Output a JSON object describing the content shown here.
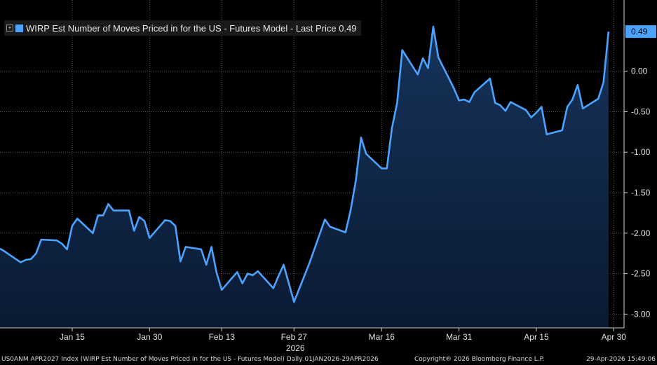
{
  "legend": {
    "expand_glyph": "+",
    "label": "WIRP Est Number of Moves Priced in for the US - Futures Model - Last Price 0.49",
    "color": "#4aa3ff"
  },
  "last_price_label": "0.49",
  "footer": {
    "source": "US0ANM APR2027 Index (WIRP Est Number of Moves Priced in for the US - Futures Model) Daily 01JAN2026-29APR2026",
    "copyright": "Copyright® 2026 Bloomberg Finance L.P.",
    "timestamp": "29-Apr-2026 15:49:06"
  },
  "colors": {
    "background": "#000000",
    "line": "#4aa3ff",
    "area_top": "#16335a",
    "area_bottom": "#0a1a33",
    "grid": "#5a5a5a",
    "label_box": "#4aa3ff"
  },
  "chart_data": {
    "type": "area",
    "title": "WIRP Est Number of Moves Priced in for the US - Futures Model",
    "x_ticks": [
      {
        "date": "2026-01-15",
        "label": "Jan 15"
      },
      {
        "date": "2026-01-30",
        "label": "Jan 30"
      },
      {
        "date": "2026-02-13",
        "label": "Feb 13"
      },
      {
        "date": "2026-02-27",
        "label": "Feb 27"
      },
      {
        "date": "2026-03-16",
        "label": "Mar 16"
      },
      {
        "date": "2026-03-31",
        "label": "Mar 31"
      },
      {
        "date": "2026-04-15",
        "label": "Apr 15"
      },
      {
        "date": "2026-04-30",
        "label": "Apr 30"
      }
    ],
    "year_label": "2026",
    "y_ticks": [
      0.0,
      -0.5,
      -1.0,
      -1.5,
      -2.0,
      -2.5,
      -3.0
    ],
    "y_tick_labels": [
      "0.00",
      "-0.50",
      "-1.00",
      "-1.50",
      "-2.00",
      "-2.50",
      "-3.00"
    ],
    "ylim": [
      -3.17,
      0.88
    ],
    "xlim": [
      "2026-01-01",
      "2026-05-02"
    ],
    "grid": true,
    "legend_position": "top-left",
    "series": [
      {
        "name": "WIRP Est Number of Moves Priced in for the US - Futures Model",
        "last_value": 0.49,
        "x": [
          "2026-01-01",
          "2026-01-02",
          "2026-01-05",
          "2026-01-06",
          "2026-01-07",
          "2026-01-08",
          "2026-01-09",
          "2026-01-12",
          "2026-01-13",
          "2026-01-14",
          "2026-01-15",
          "2026-01-16",
          "2026-01-19",
          "2026-01-20",
          "2026-01-21",
          "2026-01-22",
          "2026-01-23",
          "2026-01-26",
          "2026-01-27",
          "2026-01-28",
          "2026-01-29",
          "2026-01-30",
          "2026-02-02",
          "2026-02-03",
          "2026-02-04",
          "2026-02-05",
          "2026-02-06",
          "2026-02-09",
          "2026-02-10",
          "2026-02-11",
          "2026-02-12",
          "2026-02-13",
          "2026-02-16",
          "2026-02-17",
          "2026-02-18",
          "2026-02-19",
          "2026-02-20",
          "2026-02-23",
          "2026-02-24",
          "2026-02-25",
          "2026-02-26",
          "2026-02-27",
          "2026-03-02",
          "2026-03-03",
          "2026-03-04",
          "2026-03-05",
          "2026-03-06",
          "2026-03-09",
          "2026-03-10",
          "2026-03-11",
          "2026-03-12",
          "2026-03-13",
          "2026-03-16",
          "2026-03-17",
          "2026-03-18",
          "2026-03-19",
          "2026-03-20",
          "2026-03-23",
          "2026-03-24",
          "2026-03-25",
          "2026-03-26",
          "2026-03-27",
          "2026-03-30",
          "2026-03-31",
          "2026-04-01",
          "2026-04-02",
          "2026-04-03",
          "2026-04-06",
          "2026-04-07",
          "2026-04-08",
          "2026-04-09",
          "2026-04-10",
          "2026-04-13",
          "2026-04-14",
          "2026-04-15",
          "2026-04-16",
          "2026-04-17",
          "2026-04-20",
          "2026-04-21",
          "2026-04-22",
          "2026-04-23",
          "2026-04-24",
          "2026-04-27",
          "2026-04-28",
          "2026-04-29"
        ],
        "y": [
          -2.19,
          -2.23,
          -2.36,
          -2.33,
          -2.32,
          -2.25,
          -2.08,
          -2.09,
          -2.13,
          -2.2,
          -1.91,
          -1.82,
          -2.0,
          -1.78,
          -1.78,
          -1.64,
          -1.72,
          -1.72,
          -1.97,
          -1.8,
          -1.85,
          -2.06,
          -1.84,
          -1.85,
          -1.91,
          -2.35,
          -2.17,
          -2.2,
          -2.39,
          -2.17,
          -2.49,
          -2.7,
          -2.48,
          -2.62,
          -2.5,
          -2.52,
          -2.47,
          -2.68,
          -2.53,
          -2.39,
          -2.62,
          -2.85,
          -2.37,
          -2.19,
          -2.01,
          -1.83,
          -1.92,
          -1.99,
          -1.71,
          -1.35,
          -0.82,
          -1.02,
          -1.2,
          -1.2,
          -0.7,
          -0.39,
          0.26,
          -0.04,
          0.16,
          0.04,
          0.55,
          0.17,
          -0.21,
          -0.36,
          -0.35,
          -0.38,
          -0.26,
          -0.09,
          -0.39,
          -0.42,
          -0.49,
          -0.38,
          -0.48,
          -0.57,
          -0.51,
          -0.44,
          -0.78,
          -0.73,
          -0.44,
          -0.35,
          -0.17,
          -0.46,
          -0.34,
          -0.14,
          0.49
        ]
      }
    ]
  }
}
